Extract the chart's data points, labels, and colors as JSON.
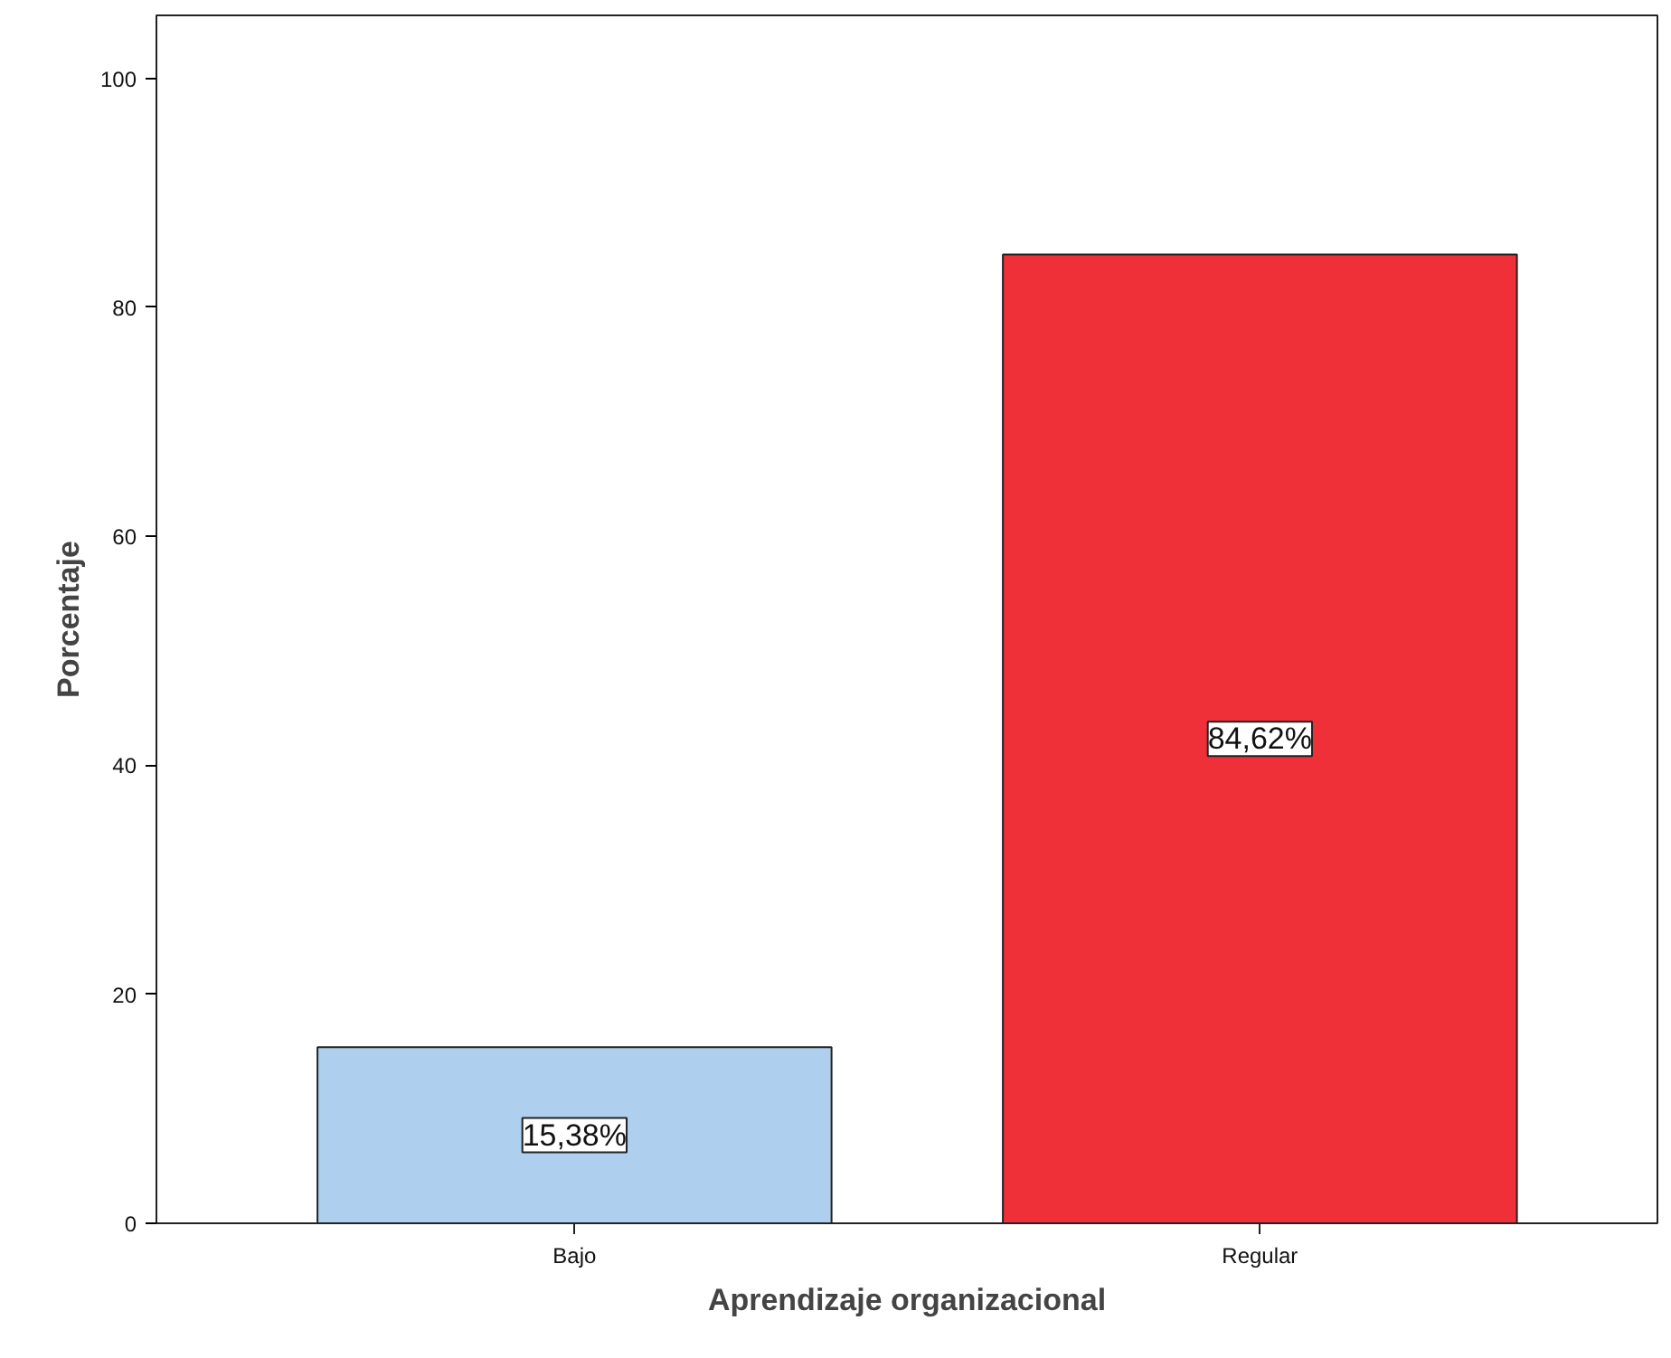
{
  "chart_data": {
    "type": "bar",
    "xlabel": "Aprendizaje organizacional",
    "ylabel": "Porcentaje",
    "categories": [
      "Bajo",
      "Regular"
    ],
    "values": [
      15.38,
      84.62
    ],
    "colors": [
      "#aecfed",
      "#ef3038"
    ],
    "value_labels": [
      "15,38%",
      "84,62%"
    ],
    "ylim": [
      0,
      105.5
    ],
    "yticks": [
      0,
      20,
      40,
      60,
      80,
      100
    ]
  }
}
